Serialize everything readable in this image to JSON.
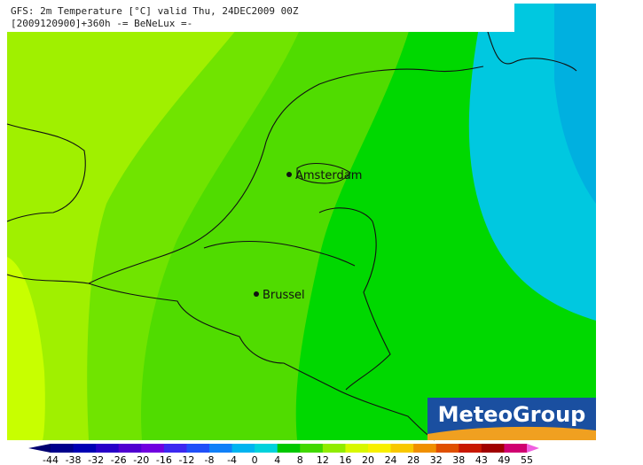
{
  "header": {
    "title": "GFS: 2m Temperature [°C] valid Thu, 24DEC2009 00Z",
    "subtitle": "[2009120900]+360h -= BeNeLux =-"
  },
  "cities": [
    {
      "label": "Amsterdam"
    },
    {
      "label": "Brussel"
    }
  ],
  "logo": "MeteoGroup",
  "colorbar": {
    "labels": [
      -44,
      -38,
      -32,
      -26,
      -20,
      -16,
      -12,
      -8,
      -4,
      0,
      4,
      8,
      12,
      16,
      20,
      24,
      28,
      32,
      38,
      43,
      49,
      55
    ],
    "colors": [
      "#000070",
      "#00008c",
      "#0000b4",
      "#2800c8",
      "#5000d0",
      "#7000e0",
      "#3c28f0",
      "#2050f8",
      "#1080f8",
      "#00b4f0",
      "#00d2dc",
      "#00c800",
      "#40d800",
      "#90ec00",
      "#d8f800",
      "#f8f000",
      "#f8c800",
      "#f09000",
      "#e05000",
      "#c81800",
      "#a00000",
      "#d00070",
      "#f060e0"
    ]
  }
}
